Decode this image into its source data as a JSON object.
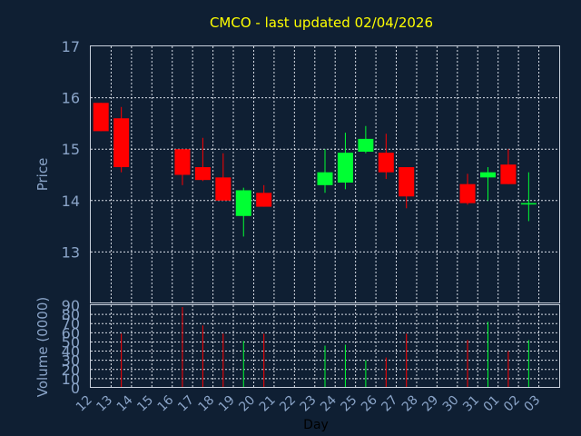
{
  "chart_data": {
    "type": "candlestick",
    "title": "CMCO - last updated 02/04/2026",
    "xlabel": "Day",
    "ylabel": "Price",
    "volume_label": "Volume (0000)",
    "grid": true,
    "colors": {
      "up": "#00ff33",
      "down": "#ff0000",
      "background": "#0f1f33",
      "title": "#ffff00",
      "axis_text": "#8aa4c8"
    },
    "price_ylim": [
      12,
      17
    ],
    "price_ticks": [
      "13",
      "14",
      "15",
      "16",
      "17"
    ],
    "volume_ylim": [
      0,
      90
    ],
    "volume_ticks": [
      "0",
      "10",
      "20",
      "30",
      "40",
      "50",
      "60",
      "70",
      "80",
      "90"
    ],
    "x_ticks": [
      "12",
      "13",
      "14",
      "15",
      "16",
      "17",
      "18",
      "19",
      "20",
      "21",
      "22",
      "23",
      "24",
      "25",
      "26",
      "27",
      "28",
      "29",
      "30",
      "31",
      "01",
      "02",
      "03"
    ],
    "candles": [
      {
        "x": "12",
        "open": 15.9,
        "high": 15.9,
        "low": 15.35,
        "close": 15.35,
        "volume": 0
      },
      {
        "x": "13",
        "open": 15.6,
        "high": 15.82,
        "low": 14.55,
        "close": 14.65,
        "volume": 59
      },
      {
        "x": "16",
        "open": 15.0,
        "high": 15.0,
        "low": 14.3,
        "close": 14.5,
        "volume": 88
      },
      {
        "x": "17",
        "open": 14.65,
        "high": 15.22,
        "low": 14.38,
        "close": 14.4,
        "volume": 68
      },
      {
        "x": "18",
        "open": 14.45,
        "high": 14.92,
        "low": 14.0,
        "close": 14.0,
        "volume": 59
      },
      {
        "x": "19",
        "open": 13.7,
        "high": 14.25,
        "low": 13.3,
        "close": 14.2,
        "volume": 51
      },
      {
        "x": "20",
        "open": 14.15,
        "high": 14.3,
        "low": 13.88,
        "close": 13.88,
        "volume": 59
      },
      {
        "x": "23",
        "open": 14.3,
        "high": 15.0,
        "low": 14.15,
        "close": 14.55,
        "volume": 46
      },
      {
        "x": "24",
        "open": 14.35,
        "high": 15.32,
        "low": 14.22,
        "close": 14.93,
        "volume": 47
      },
      {
        "x": "25",
        "open": 14.95,
        "high": 15.45,
        "low": 14.92,
        "close": 15.2,
        "volume": 30
      },
      {
        "x": "26",
        "open": 14.93,
        "high": 15.3,
        "low": 14.42,
        "close": 14.55,
        "volume": 33
      },
      {
        "x": "27",
        "open": 14.65,
        "high": 14.65,
        "low": 13.85,
        "close": 14.08,
        "volume": 59
      },
      {
        "x": "30",
        "open": 14.32,
        "high": 14.52,
        "low": 13.92,
        "close": 13.95,
        "volume": 52
      },
      {
        "x": "31",
        "open": 14.45,
        "high": 14.65,
        "low": 14.0,
        "close": 14.55,
        "volume": 72
      },
      {
        "x": "01",
        "open": 14.7,
        "high": 15.0,
        "low": 14.32,
        "close": 14.32,
        "volume": 40
      },
      {
        "x": "02",
        "open": 13.93,
        "high": 14.55,
        "low": 13.6,
        "close": 13.95,
        "volume": 52
      }
    ]
  }
}
